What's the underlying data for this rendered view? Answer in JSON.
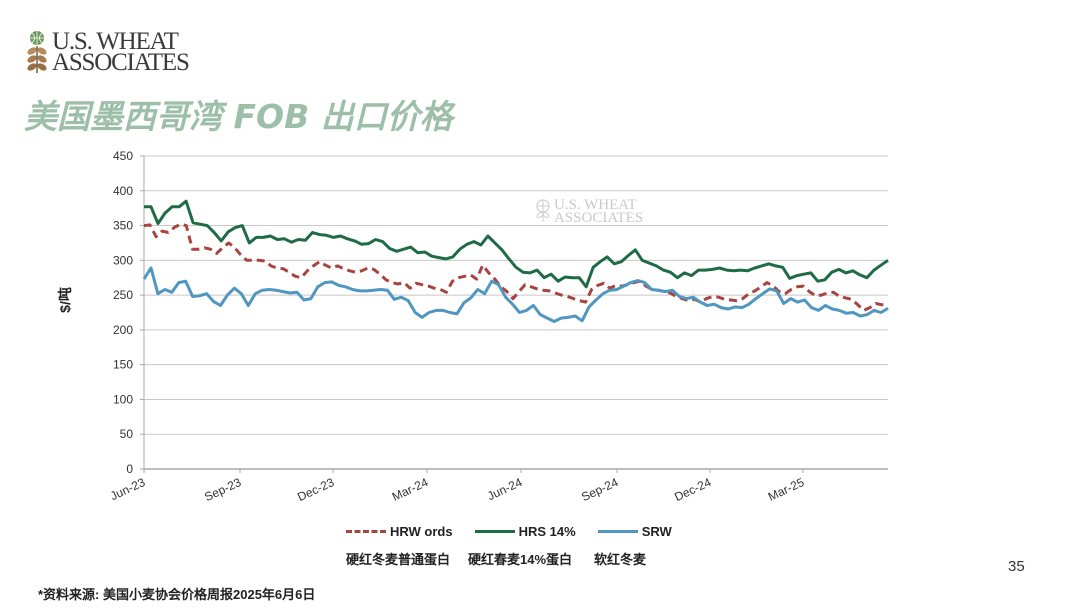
{
  "header": {
    "logo_line1": "U.S. WHEAT",
    "logo_line2": "ASSOCIATES",
    "title": "美国墨西哥湾 FOB 出口价格"
  },
  "chart_data": {
    "type": "line",
    "title": "美国墨西哥湾 FOB 出口价格",
    "xlabel": "",
    "ylabel": "$/吨",
    "ylim": [
      0,
      450
    ],
    "yticks": [
      0,
      50,
      100,
      150,
      200,
      250,
      300,
      350,
      400,
      450
    ],
    "xticks": [
      "Jun-23",
      "Sep-23",
      "Dec-23",
      "Mar-24",
      "Jun-24",
      "Sep-24",
      "Dec-24",
      "Mar-25"
    ],
    "x_range": [
      "Jun-23",
      "Jun-25"
    ],
    "grid": true,
    "legend_position": "bottom",
    "watermark": "U.S. WHEAT ASSOCIATES",
    "series": [
      {
        "name": "HRW ords",
        "name_cn": "硬红冬麦普通蛋白",
        "color": "#a84440",
        "style": "dashed",
        "values": [
          350,
          351,
          334,
          342,
          340,
          347,
          352,
          350,
          316,
          316,
          318,
          316,
          310,
          318,
          325,
          318,
          308,
          300,
          300,
          300,
          299,
          292,
          289,
          288,
          283,
          277,
          275,
          285,
          292,
          298,
          293,
          289,
          292,
          288,
          285,
          283,
          285,
          289,
          287,
          280,
          272,
          268,
          266,
          268,
          260,
          267,
          265,
          263,
          260,
          258,
          254,
          270,
          275,
          277,
          279,
          273,
          293,
          282,
          273,
          262,
          255,
          245,
          255,
          265,
          262,
          259,
          257,
          256,
          253,
          250,
          248,
          245,
          242,
          240,
          258,
          264,
          267,
          260,
          264,
          263,
          265,
          268,
          270,
          263,
          258,
          257,
          255,
          253,
          248,
          245,
          242,
          244,
          240,
          245,
          248,
          247,
          244,
          243,
          242,
          245,
          252,
          256,
          262,
          268,
          263,
          255,
          252,
          258,
          262,
          263,
          255,
          249,
          250,
          253,
          254,
          248,
          246,
          244,
          236,
          228,
          232,
          238,
          236,
          237
        ]
      },
      {
        "name": "HRS 14%",
        "name_cn": "硬红春麦14%蛋白",
        "color": "#1f6b45",
        "style": "solid",
        "values": [
          377,
          377,
          353,
          368,
          377,
          377,
          385,
          354,
          352,
          350,
          340,
          328,
          341,
          347,
          350,
          325,
          333,
          333,
          335,
          330,
          331,
          326,
          330,
          329,
          340,
          337,
          336,
          333,
          335,
          331,
          328,
          323,
          324,
          330,
          327,
          317,
          313,
          316,
          319,
          311,
          312,
          306,
          304,
          302,
          305,
          316,
          323,
          327,
          322,
          335,
          325,
          315,
          302,
          290,
          283,
          282,
          286,
          275,
          280,
          270,
          276,
          275,
          275,
          262,
          290,
          298,
          305,
          295,
          298,
          307,
          315,
          300,
          296,
          292,
          286,
          283,
          275,
          282,
          278,
          286,
          286,
          287,
          289,
          286,
          285,
          286,
          285,
          289,
          292,
          295,
          292,
          290,
          274,
          278,
          280,
          282,
          270,
          272,
          283,
          287,
          282,
          285,
          279,
          275,
          286,
          293,
          300
        ]
      },
      {
        "name": "SRW",
        "name_cn": "软红冬麦",
        "color": "#4f97c0",
        "style": "solid",
        "values": [
          273,
          289,
          252,
          258,
          254,
          268,
          270,
          248,
          249,
          252,
          241,
          235,
          250,
          260,
          252,
          235,
          252,
          257,
          258,
          257,
          255,
          253,
          254,
          243,
          245,
          262,
          268,
          269,
          264,
          262,
          258,
          256,
          256,
          257,
          258,
          257,
          244,
          247,
          242,
          225,
          218,
          225,
          228,
          228,
          225,
          223,
          239,
          246,
          258,
          252,
          270,
          265,
          247,
          237,
          225,
          228,
          235,
          222,
          217,
          212,
          217,
          218,
          220,
          213,
          233,
          243,
          252,
          257,
          258,
          263,
          268,
          271,
          268,
          258,
          257,
          255,
          257,
          248,
          245,
          247,
          240,
          235,
          237,
          232,
          230,
          233,
          232,
          237,
          245,
          252,
          259,
          256,
          238,
          245,
          240,
          243,
          232,
          228,
          235,
          230,
          228,
          224,
          225,
          220,
          222,
          228,
          225,
          231
        ]
      }
    ]
  },
  "legend": {
    "items": [
      {
        "label": "HRW ords",
        "label_cn": "硬红冬麦普通蛋白"
      },
      {
        "label": "HRS 14%",
        "label_cn": "硬红春麦14%蛋白"
      },
      {
        "label": "SRW",
        "label_cn": "软红冬麦"
      }
    ]
  },
  "footer": {
    "source": "*资料来源: 美国小麦协会价格周报2025年6月6日",
    "page_number": "35"
  }
}
